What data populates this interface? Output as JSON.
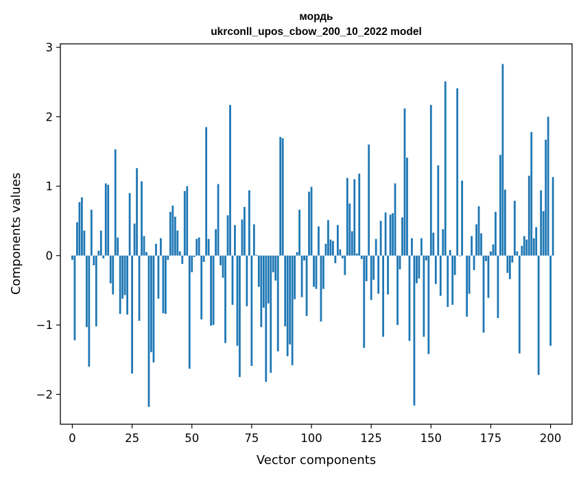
{
  "chart_data": {
    "type": "bar",
    "title": "мордь",
    "subtitle": "ukrconll_upos_cbow_200_10_2022 model",
    "xlabel": "Vector components",
    "ylabel": "Components values",
    "xlim": [
      -5,
      209
    ],
    "ylim": [
      -2.43,
      3.05
    ],
    "xticks": [
      0,
      25,
      50,
      75,
      100,
      125,
      150,
      175,
      200
    ],
    "xtick_labels": [
      "0",
      "25",
      "50",
      "75",
      "100",
      "125",
      "150",
      "175",
      "200"
    ],
    "yticks": [
      -2,
      -1,
      0,
      1,
      2,
      3
    ],
    "ytick_labels": [
      "−2",
      "−1",
      "0",
      "1",
      "2",
      "3"
    ],
    "grid": false,
    "bar_color": "#1f77b4",
    "values": [
      -0.06,
      -1.22,
      0.48,
      0.77,
      0.84,
      0.36,
      -1.03,
      -1.6,
      0.66,
      -0.14,
      -1.02,
      0.07,
      0.36,
      -0.04,
      1.04,
      1.02,
      -0.4,
      -0.56,
      1.53,
      0.26,
      -0.84,
      -0.62,
      -0.57,
      -0.85,
      0.9,
      -1.7,
      0.46,
      1.26,
      -0.94,
      1.07,
      0.28,
      0.05,
      -2.18,
      -1.39,
      -1.54,
      0.17,
      -0.62,
      0.25,
      -0.83,
      -0.84,
      -0.06,
      0.63,
      0.72,
      0.56,
      0.36,
      0.06,
      -0.12,
      0.93,
      1.0,
      -1.63,
      -0.24,
      -0.02,
      0.24,
      0.26,
      -0.92,
      -0.09,
      1.85,
      0.24,
      -1.01,
      -1.0,
      0.38,
      1.03,
      -0.14,
      -0.32,
      -1.26,
      0.58,
      2.17,
      -0.71,
      0.44,
      -1.3,
      -1.75,
      0.52,
      0.7,
      -0.73,
      0.94,
      -1.59,
      0.45,
      0.01,
      -0.45,
      -1.03,
      -0.75,
      -1.82,
      -0.69,
      -1.69,
      -0.24,
      -0.36,
      -1.38,
      1.71,
      1.69,
      -1.02,
      -1.45,
      -1.28,
      -1.58,
      -0.63,
      0.05,
      0.66,
      -0.6,
      -0.07,
      -0.87,
      0.92,
      0.99,
      -0.45,
      -0.48,
      0.42,
      -0.95,
      -0.48,
      0.17,
      0.51,
      0.23,
      0.21,
      -0.11,
      0.44,
      0.09,
      -0.04,
      -0.28,
      1.12,
      0.75,
      0.35,
      1.1,
      0.03,
      1.18,
      -0.05,
      -1.33,
      -0.37,
      1.6,
      -0.64,
      -0.35,
      0.24,
      -0.55,
      0.5,
      -1.17,
      0.62,
      -0.56,
      0.59,
      0.61,
      1.04,
      -1.0,
      -0.2,
      0.55,
      2.12,
      1.41,
      -1.23,
      0.25,
      -2.16,
      -0.4,
      -0.33,
      0.25,
      -1.17,
      -0.07,
      -1.42,
      2.17,
      0.33,
      -0.41,
      1.3,
      -0.58,
      0.38,
      2.51,
      -0.74,
      0.08,
      -0.71,
      -0.28,
      2.41,
      -0.01,
      1.08,
      0.0,
      -0.88,
      -0.55,
      0.28,
      -0.21,
      0.45,
      0.71,
      0.32,
      -1.11,
      -0.08,
      -0.61,
      0.06,
      0.16,
      0.63,
      -0.9,
      1.45,
      2.76,
      0.95,
      -0.25,
      -0.34,
      -0.1,
      0.79,
      0.06,
      -1.41,
      0.14,
      0.28,
      0.23,
      1.15,
      1.78,
      0.25,
      0.41,
      -1.72,
      0.94,
      0.64,
      1.67,
      2.0,
      -1.3,
      1.13
    ]
  }
}
